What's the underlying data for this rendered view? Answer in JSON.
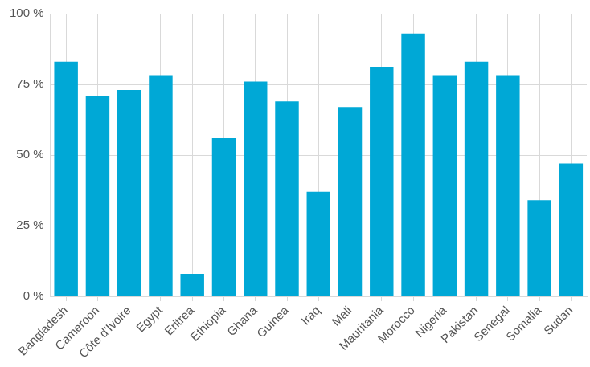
{
  "chart_data": {
    "type": "bar",
    "categories": [
      "Bangladesh",
      "Cameroon",
      "Côte d'Ivoire",
      "Egypt",
      "Eritrea",
      "Ethiopia",
      "Ghana",
      "Guinea",
      "Iraq",
      "Mali",
      "Mauritania",
      "Morocco",
      "Nigeria",
      "Pakistan",
      "Senegal",
      "Somalia",
      "Sudan"
    ],
    "values": [
      83,
      71,
      73,
      78,
      8,
      56,
      76,
      69,
      37,
      67,
      81,
      93,
      78,
      83,
      78,
      34,
      47
    ],
    "color": "#00a8d6",
    "ylim": [
      0,
      100
    ],
    "yticks": [
      {
        "value": 0,
        "label": "0 %"
      },
      {
        "value": 25,
        "label": "25 %"
      },
      {
        "value": 50,
        "label": "50 %"
      },
      {
        "value": 75,
        "label": "75 %"
      },
      {
        "value": 100,
        "label": "100 %"
      }
    ],
    "grid": true
  }
}
